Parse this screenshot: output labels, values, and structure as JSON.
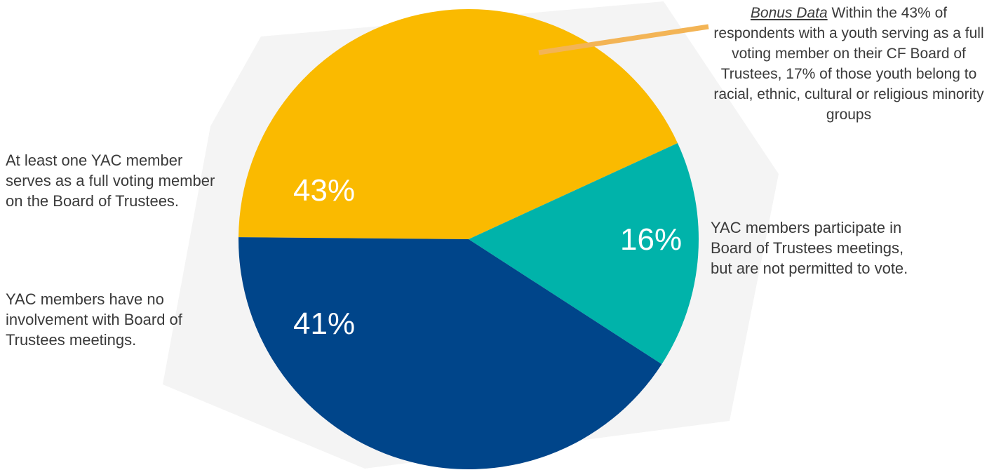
{
  "chart_data": {
    "type": "pie",
    "slices": [
      {
        "value": 43,
        "label_text": "43%",
        "color": "#FABA00",
        "category": "At least one YAC member serves as a full voting member on the Board of Trustees."
      },
      {
        "value": 16,
        "label_text": "16%",
        "color": "#00B3AA",
        "category": "YAC members participate in Board of Trustees meetings, but are not permitted to vote."
      },
      {
        "value": 41,
        "label_text": "41%",
        "color": "#00458A",
        "category": "YAC members have no involvement with Board of Trustees meetings."
      }
    ],
    "category_lines": {
      "voting": [
        "At least one YAC member",
        "serves as a full voting member",
        "on the Board of Trustees."
      ],
      "participate": [
        "YAC members participate in",
        "Board of Trustees meetings,",
        "but are not permitted to vote."
      ],
      "none": [
        "YAC members have no",
        "involvement with Board of",
        "Trustees meetings."
      ]
    },
    "annotation": {
      "lead": "Bonus Data",
      "text": "Within the 43% of respondents with a youth serving as a full voting member on their CF Board of Trustees, 17% of those youth belong to racial, ethnic, cultural or religious minority groups",
      "line_color": "#F3B455"
    }
  }
}
